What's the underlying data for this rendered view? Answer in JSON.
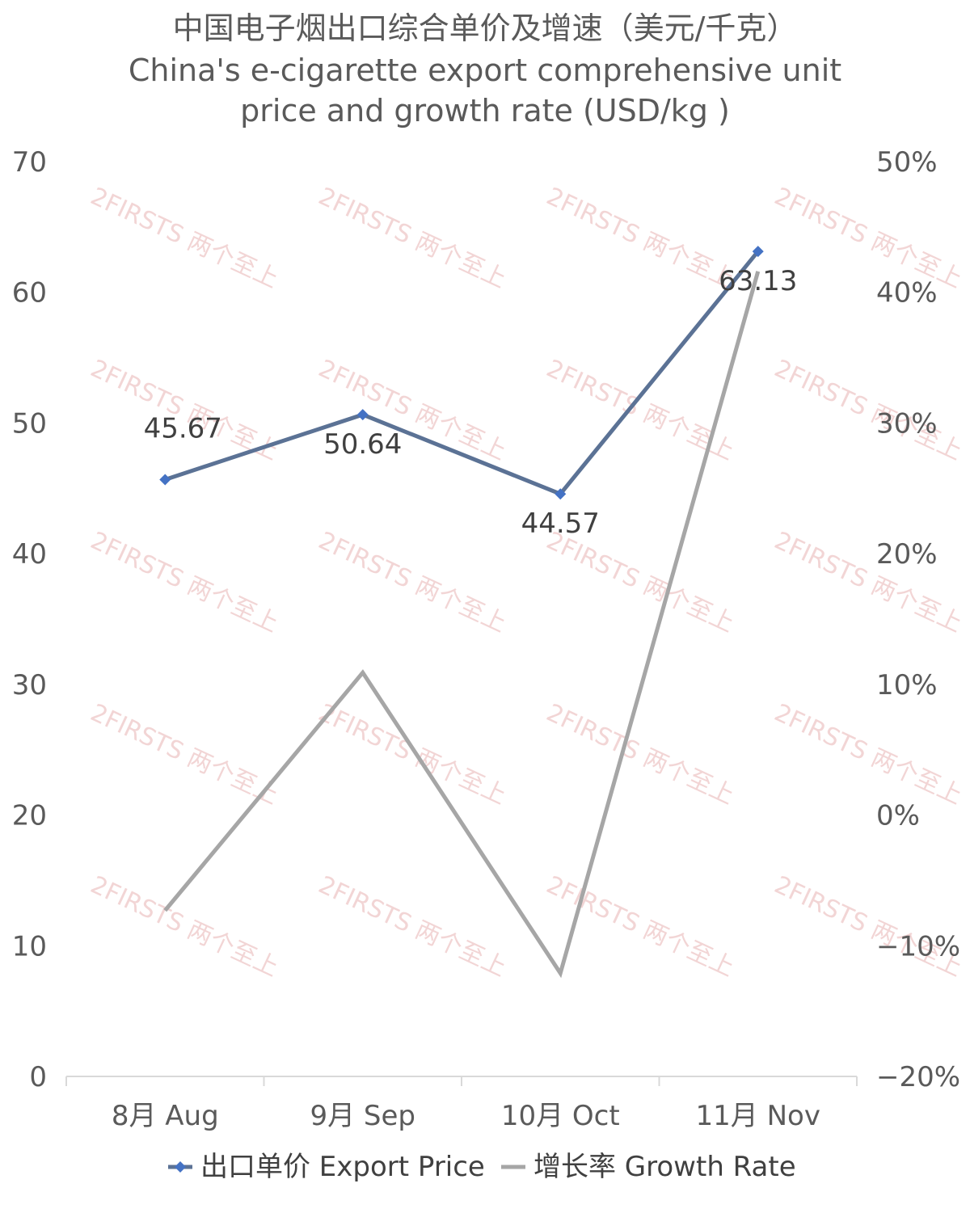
{
  "chart_data": {
    "type": "line",
    "title_lines": [
      "中国电子烟出口综合单价及增速（美元/千克）",
      "China's e-cigarette export comprehensive unit",
      "price and growth rate (USD/kg )"
    ],
    "categories": [
      "8月 Aug",
      "9月 Sep",
      "10月 Oct",
      "11月 Nov"
    ],
    "series": [
      {
        "name": "出口单价 Export Price",
        "axis": "left",
        "values": [
          45.67,
          50.64,
          44.57,
          63.13
        ],
        "data_labels": [
          "45.67",
          "50.64",
          "44.57",
          "63.13"
        ],
        "color": "#5b7295",
        "marker_color": "#4472c4"
      },
      {
        "name": "增长率 Growth Rate",
        "axis": "right",
        "values": [
          -7.3,
          10.9,
          -12.1,
          41.6
        ],
        "color": "#a6a6a6"
      }
    ],
    "left_axis": {
      "min": 0,
      "max": 70,
      "step": 10,
      "ticks": [
        "0",
        "10",
        "20",
        "30",
        "40",
        "50",
        "60",
        "70"
      ]
    },
    "right_axis": {
      "min": -20,
      "max": 50,
      "step": 10,
      "ticks": [
        "−20%",
        "−10%",
        "0%",
        "10%",
        "20%",
        "30%",
        "40%",
        "50%"
      ]
    },
    "grid": false,
    "legend_position": "bottom",
    "watermark_text": "2FIRSTS 两个至上"
  }
}
